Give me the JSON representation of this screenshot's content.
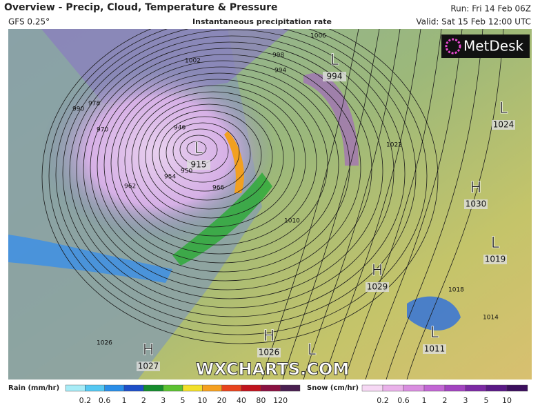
{
  "header": {
    "title": "Overview - Precip, Cloud, Temperature & Pressure",
    "model": "GFS 0.25°",
    "subtitle": "Instantaneous precipitation rate",
    "run": "Run: Fri 14 Feb 06Z",
    "valid": "Valid: Sat 15 Feb 12:00 UTC"
  },
  "logo": "MetDesk",
  "watermark": "WXCHARTS.COM",
  "map": {
    "pressure_centers": [
      {
        "type": "L",
        "value": "994"
      },
      {
        "type": "L",
        "value": "915"
      },
      {
        "type": "L",
        "value": "1024"
      },
      {
        "type": "H",
        "value": "1030"
      },
      {
        "type": "L",
        "value": "1019"
      },
      {
        "type": "H",
        "value": "1029"
      },
      {
        "type": "H",
        "value": "1026"
      },
      {
        "type": "H",
        "value": "1027"
      },
      {
        "type": "L",
        "value": "1011"
      },
      {
        "type": "L"
      }
    ],
    "isobar_labels": [
      "946",
      "950",
      "954",
      "962",
      "966",
      "970",
      "978",
      "990",
      "994",
      "998",
      "1002",
      "1006",
      "1010",
      "1014",
      "1018",
      "1022",
      "1026"
    ]
  },
  "legend": {
    "rain": {
      "title": "Rain (mm/hr)",
      "ticks": [
        "0.2",
        "0.6",
        "1",
        "2",
        "3",
        "5",
        "10",
        "20",
        "40",
        "80",
        "120"
      ],
      "colors": [
        "#a8ecf7",
        "#55c8f2",
        "#2a8ee8",
        "#1e4fc8",
        "#168c2e",
        "#5cc232",
        "#f2e02a",
        "#f5a020",
        "#e8441e",
        "#c0141e",
        "#8a1242",
        "#4a2050"
      ]
    },
    "snow": {
      "title": "Snow (cm/hr)",
      "ticks": [
        "0.2",
        "0.6",
        "1",
        "2",
        "3",
        "5",
        "10"
      ],
      "colors": [
        "#f6d8f4",
        "#eab2ea",
        "#d98ee0",
        "#c266d4",
        "#a244c0",
        "#7c2aa4",
        "#5a1a86",
        "#3c105e"
      ]
    }
  }
}
